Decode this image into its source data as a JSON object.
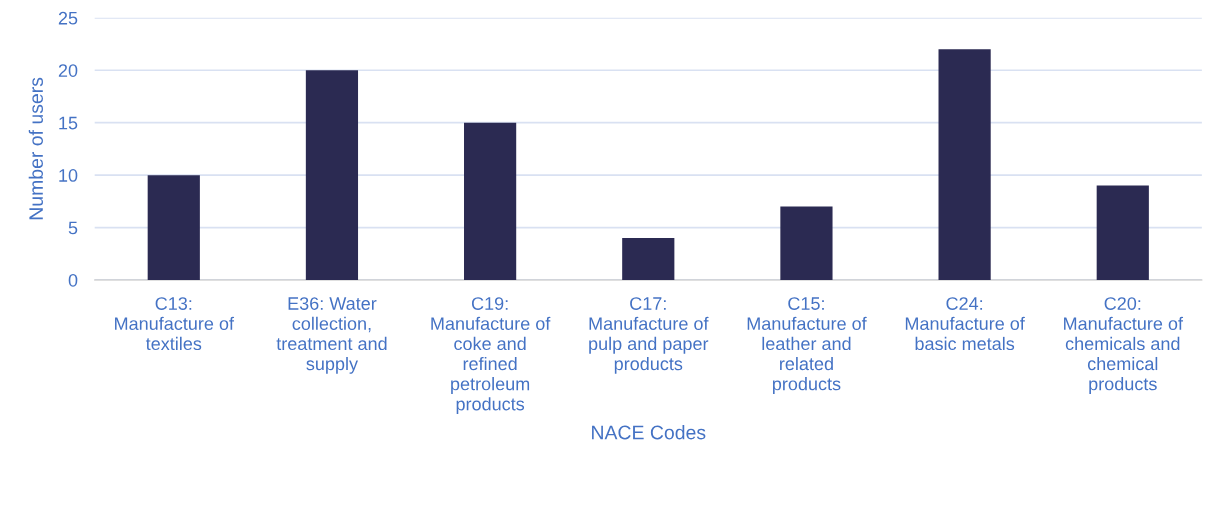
{
  "chart_data": {
    "type": "bar",
    "xlabel": "NACE Codes",
    "ylabel": "Number of users",
    "categories": [
      "C13:\nManufacture of\ntextiles",
      "E36: Water\ncollection,\ntreatment and\nsupply",
      "C19:\nManufacture of\ncoke and\nrefined\npetroleum\nproducts",
      "C17:\nManufacture of\npulp and paper\nproducts",
      "C15:\nManufacture of\nleather and\nrelated\nproducts",
      "C24:\nManufacture of\nbasic metals",
      "C20:\nManufacture of\nchemicals and\nchemical\nproducts"
    ],
    "values": [
      10,
      20,
      15,
      4,
      7,
      22,
      9
    ],
    "color": "#2b2a52",
    "ylim": [
      0,
      25
    ],
    "yticks": [
      0,
      5,
      10,
      15,
      20,
      25
    ],
    "grid": "y"
  }
}
